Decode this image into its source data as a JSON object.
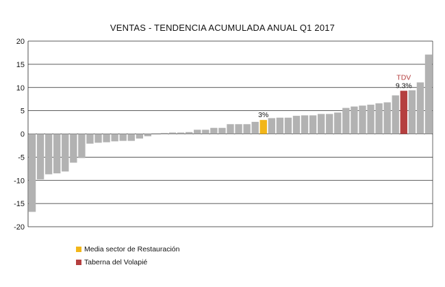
{
  "colors": {
    "bar": "#b2b2b2",
    "highlight_media": "#f2b619",
    "highlight_tdv": "#b53f3f",
    "grid": "#222222",
    "tdv_label": "#b53f3f"
  },
  "chart_data": {
    "type": "bar",
    "title": "VENTAS - TENDENCIA ACUMULADA ANUAL Q1 2017",
    "xlabel": "",
    "ylabel": "",
    "ylim": [
      -20,
      20
    ],
    "yticks": [
      20,
      15,
      10,
      5,
      0,
      -5,
      -10,
      -15,
      -20
    ],
    "grid": true,
    "legend_position": "bottom-left",
    "values": [
      -16.8,
      -9.8,
      -8.7,
      -8.5,
      -8.1,
      -6.2,
      -5.2,
      -2.1,
      -1.9,
      -1.8,
      -1.6,
      -1.5,
      -1.5,
      -1.0,
      -0.5,
      0,
      0.2,
      0.3,
      0.3,
      0.4,
      0.9,
      0.9,
      1.3,
      1.3,
      2.1,
      2.1,
      2.1,
      2.6,
      3.0,
      3.4,
      3.5,
      3.5,
      3.9,
      4.0,
      4.0,
      4.3,
      4.3,
      4.6,
      5.6,
      5.9,
      6.1,
      6.3,
      6.6,
      6.8,
      8.3,
      9.3,
      9.4,
      11.1,
      17.1
    ],
    "highlights": [
      {
        "index": 28,
        "series": "Media sector de Restauración",
        "label": "3%",
        "color_key": "highlight_media"
      },
      {
        "index": 45,
        "series": "Taberna del Volapié",
        "label": "9.3%",
        "name": "TDV",
        "color_key": "highlight_tdv"
      }
    ],
    "legend": [
      {
        "label": "Media sector de Restauración",
        "color_key": "highlight_media"
      },
      {
        "label": "Taberna del Volapié",
        "color_key": "highlight_tdv"
      }
    ]
  }
}
